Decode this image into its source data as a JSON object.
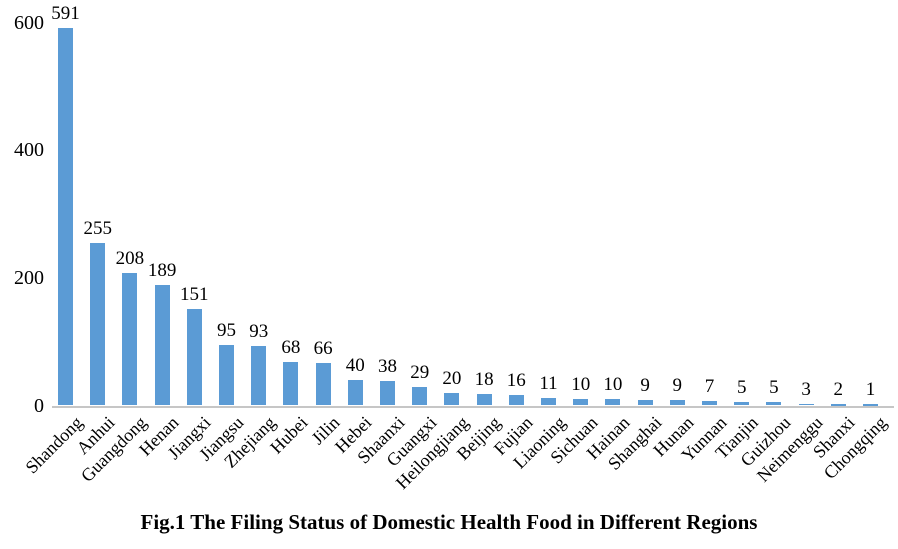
{
  "chart_data": {
    "type": "bar",
    "title": "Fig.1 The Filing Status of Domestic Health Food in Different Regions",
    "categories": [
      "Shandong",
      "Anhui",
      "Guangdong",
      "Henan",
      "Jiangxi",
      "Jiangsu",
      "Zhejiang",
      "Hubei",
      "Jilin",
      "Hebei",
      "Shaanxi",
      "Guangxi",
      "Heilongjiang",
      "Beijing",
      "Fujian",
      "Liaoning",
      "Sichuan",
      "Hainan",
      "Shanghai",
      "Hunan",
      "Yunnan",
      "Tianjin",
      "Guizhou",
      "Neimenggu",
      "Shanxi",
      "Chongqing"
    ],
    "values": [
      591,
      255,
      208,
      189,
      151,
      95,
      93,
      68,
      66,
      40,
      38,
      29,
      20,
      18,
      16,
      11,
      10,
      10,
      9,
      9,
      7,
      5,
      5,
      3,
      2,
      1
    ],
    "xlabel": "",
    "ylabel": "",
    "ylim": [
      0,
      600
    ],
    "yticks": [
      0,
      200,
      400,
      600
    ],
    "grid": "off",
    "legend_position": "none",
    "data_labels": true,
    "bar_color": "#5B9BD5",
    "axis_line_color": "#C6C6C6",
    "text_color": "#000000"
  }
}
